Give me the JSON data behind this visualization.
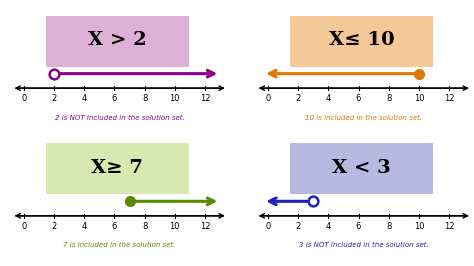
{
  "background_color": "#ffffff",
  "panels": [
    {
      "label": "X > 2",
      "box_color": "#ddb0d8",
      "text_color": "#000000",
      "line_color": "#8b008b",
      "arrow_direction": "right",
      "point_value": 2,
      "point_filled": false,
      "caption": "2 is NOT included in the solution set.",
      "caption_color": "#8b008b",
      "row": 1,
      "col": 0
    },
    {
      "label": "X≤ 10",
      "box_color": "#f5c898",
      "text_color": "#000000",
      "line_color": "#e07800",
      "arrow_direction": "left",
      "point_value": 10,
      "point_filled": true,
      "caption": "10 is included in the solution set.",
      "caption_color": "#e07800",
      "row": 1,
      "col": 1
    },
    {
      "label": "X≥ 7",
      "box_color": "#d8e8b0",
      "text_color": "#000000",
      "line_color": "#5a8a00",
      "arrow_direction": "right",
      "point_value": 7,
      "point_filled": true,
      "caption": "7 is included in the solution set.",
      "caption_color": "#5a8a00",
      "row": 0,
      "col": 0
    },
    {
      "label": "X < 3",
      "box_color": "#b8b8e0",
      "text_color": "#000000",
      "line_color": "#2020c0",
      "arrow_direction": "left",
      "point_value": 3,
      "point_filled": false,
      "caption": "3 is NOT included in the solution set.",
      "caption_color": "#2020c0",
      "row": 0,
      "col": 1
    }
  ],
  "axis_ticks": [
    0,
    2,
    4,
    6,
    8,
    10,
    12
  ],
  "axis_min": -0.8,
  "axis_max": 13.5
}
